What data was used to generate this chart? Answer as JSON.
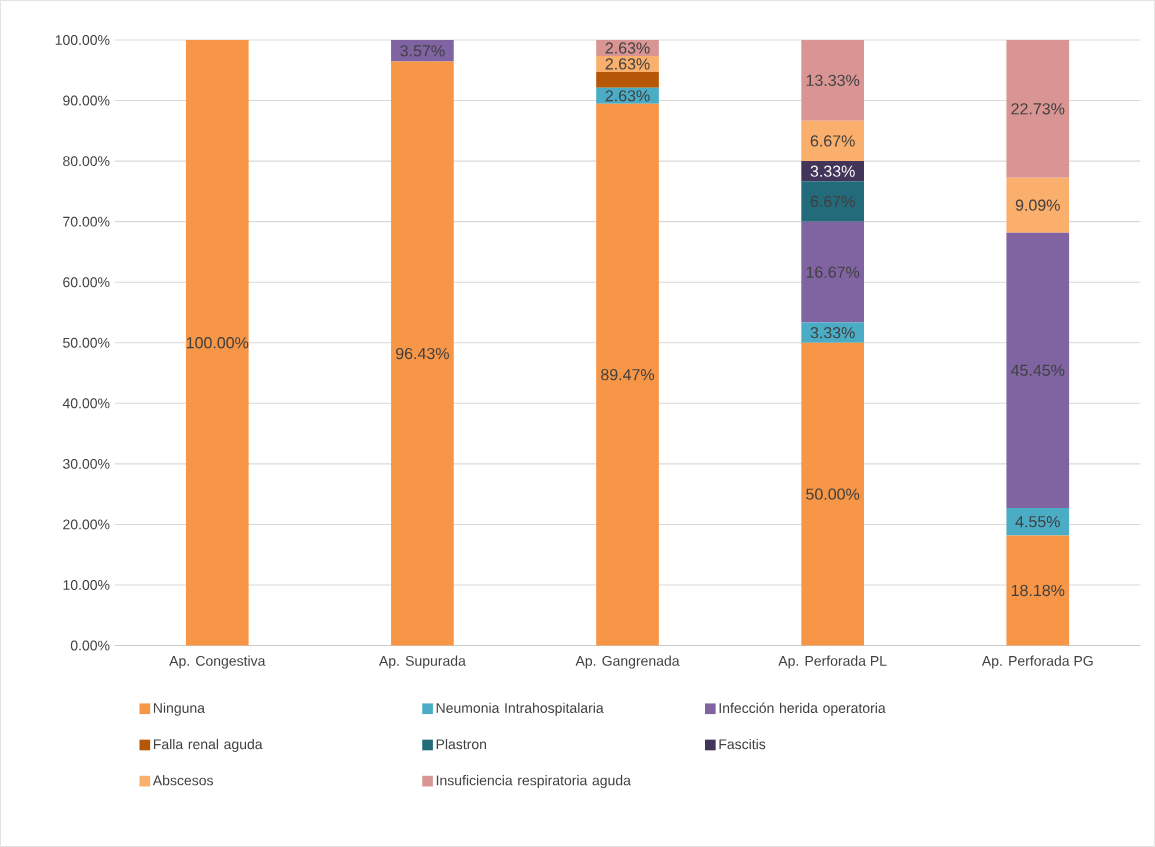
{
  "chart_data": {
    "type": "bar",
    "stacked": true,
    "categories": [
      "Ap. Congestiva",
      "Ap. Supurada",
      "Ap. Gangrenada",
      "Ap. Perforada PL",
      "Ap. Perforada PG"
    ],
    "series": [
      {
        "name": "Ninguna",
        "color": "#f79646",
        "values": [
          100,
          96.43,
          89.47,
          50,
          18.18
        ],
        "value_labels": [
          "100.00%",
          "96.43%",
          "89.47%",
          "50.00%",
          "18.18%"
        ]
      },
      {
        "name": "Neumonia Intrahospitalaria",
        "color": "#4bacc6",
        "values": [
          0,
          0,
          2.63,
          3.33,
          4.55
        ],
        "value_labels": [
          null,
          null,
          "2.63%",
          "3.33%",
          "4.55%"
        ]
      },
      {
        "name": "Infección herida operatoria",
        "color": "#8064a2",
        "values": [
          0,
          3.57,
          0,
          16.67,
          45.45
        ],
        "value_labels": [
          null,
          "3.57%",
          null,
          "16.67%",
          "45.45%"
        ]
      },
      {
        "name": "Falla renal aguda",
        "color": "#b65708",
        "values": [
          0,
          0,
          2.63,
          0,
          0
        ],
        "value_labels": [
          null,
          null,
          null,
          null,
          null
        ]
      },
      {
        "name": "Plastron",
        "color": "#236a7a",
        "values": [
          0,
          0,
          0,
          6.67,
          0
        ],
        "value_labels": [
          null,
          null,
          null,
          "6.67%",
          null
        ]
      },
      {
        "name": "Fascitis",
        "color": "#433459",
        "values": [
          0,
          0,
          0,
          3.33,
          0
        ],
        "value_labels": [
          null,
          null,
          null,
          "3.33%",
          null
        ]
      },
      {
        "name": "Abscesos",
        "color": "#fbaf6c",
        "values": [
          0,
          0,
          2.63,
          6.67,
          9.09
        ],
        "value_labels": [
          null,
          null,
          "2.63%",
          "6.67%",
          "9.09%"
        ]
      },
      {
        "name": "Insuficiencia respiratoria aguda",
        "color": "#d99594",
        "values": [
          0,
          0,
          2.63,
          13.33,
          22.73
        ],
        "value_labels": [
          null,
          null,
          "2.63%",
          "13.33%",
          "22.73%"
        ]
      }
    ],
    "ylim": [
      0,
      100
    ],
    "yticks": [
      {
        "value": 0,
        "label": "0.00%"
      },
      {
        "value": 10,
        "label": "10.00%"
      },
      {
        "value": 20,
        "label": "20.00%"
      },
      {
        "value": 30,
        "label": "30.00%"
      },
      {
        "value": 40,
        "label": "40.00%"
      },
      {
        "value": 50,
        "label": "50.00%"
      },
      {
        "value": 60,
        "label": "60.00%"
      },
      {
        "value": 70,
        "label": "70.00%"
      },
      {
        "value": 80,
        "label": "80.00%"
      },
      {
        "value": 90,
        "label": "90.00%"
      },
      {
        "value": 100,
        "label": "100.00%"
      }
    ],
    "grid": "y",
    "legend": "bottom"
  }
}
